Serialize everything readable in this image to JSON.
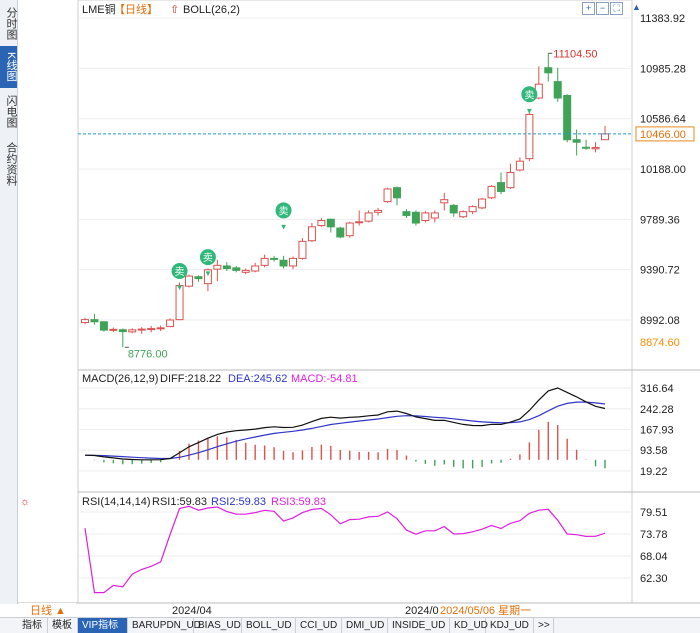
{
  "side_tabs": [
    {
      "label": "分时图",
      "active": false
    },
    {
      "label": "K线图",
      "active": true
    },
    {
      "label": "闪电图",
      "active": false
    },
    {
      "label": "合约资料",
      "active": false
    }
  ],
  "header": {
    "instrument": "LME铜",
    "period": "【日线】",
    "indicator": "BOLL(26,2)"
  },
  "top_icons": [
    "zoom-in-icon",
    "zoom-out-icon",
    "fullscreen-icon",
    "scroll-up-icon"
  ],
  "price_panel": {
    "y_ticks": [
      "11383.92",
      "10985.28",
      "10586.64",
      "10188.00",
      "9789.36",
      "9390.72",
      "8992.08"
    ],
    "ylim": [
      8700,
      11383.92
    ],
    "current_price": "10466.00",
    "low_tag": "8874.60",
    "high_annotation": "11104.50",
    "low_annotation": "8776.00",
    "sell_marker_label": "卖",
    "candles": [
      [
        8972,
        8995,
        8958,
        9010
      ],
      [
        8995,
        8978,
        8955,
        9040
      ],
      [
        8978,
        8912,
        8900,
        8982
      ],
      [
        8910,
        8918,
        8896,
        8932
      ],
      [
        8915,
        8900,
        8776,
        8925
      ],
      [
        8898,
        8914,
        8888,
        8926
      ],
      [
        8912,
        8920,
        8882,
        8935
      ],
      [
        8918,
        8924,
        8895,
        8945
      ],
      [
        8922,
        8930,
        8905,
        8948
      ],
      [
        8940,
        8992,
        8935,
        9005
      ],
      [
        8995,
        9265,
        8990,
        9290
      ],
      [
        9260,
        9340,
        9250,
        9350
      ],
      [
        9335,
        9320,
        9295,
        9345
      ],
      [
        9280,
        9390,
        9220,
        9400
      ],
      [
        9395,
        9425,
        9300,
        9470
      ],
      [
        9420,
        9400,
        9380,
        9450
      ],
      [
        9405,
        9385,
        9370,
        9420
      ],
      [
        9370,
        9385,
        9355,
        9400
      ],
      [
        9380,
        9420,
        9370,
        9445
      ],
      [
        9425,
        9480,
        9410,
        9510
      ],
      [
        9480,
        9475,
        9455,
        9500
      ],
      [
        9465,
        9420,
        9400,
        9500
      ],
      [
        9420,
        9480,
        9395,
        9495
      ],
      [
        9480,
        9615,
        9470,
        9640
      ],
      [
        9620,
        9730,
        9610,
        9760
      ],
      [
        9740,
        9780,
        9730,
        9800
      ],
      [
        9790,
        9730,
        9685,
        9795
      ],
      [
        9720,
        9650,
        9640,
        9730
      ],
      [
        9660,
        9760,
        9645,
        9770
      ],
      [
        9765,
        9770,
        9740,
        9860
      ],
      [
        9775,
        9840,
        9765,
        9860
      ],
      [
        9845,
        9860,
        9820,
        9880
      ],
      [
        9930,
        10030,
        9920,
        10040
      ],
      [
        10040,
        9960,
        9900,
        10050
      ],
      [
        9850,
        9820,
        9800,
        9870
      ],
      [
        9845,
        9760,
        9740,
        9860
      ],
      [
        9780,
        9840,
        9765,
        9855
      ],
      [
        9800,
        9840,
        9765,
        9860
      ],
      [
        9920,
        9945,
        9860,
        10000
      ],
      [
        9900,
        9840,
        9810,
        9910
      ],
      [
        9810,
        9850,
        9800,
        9860
      ],
      [
        9850,
        9890,
        9830,
        9900
      ],
      [
        9880,
        9950,
        9870,
        9960
      ],
      [
        9960,
        10050,
        9950,
        10060
      ],
      [
        10080,
        10010,
        9990,
        10160
      ],
      [
        10040,
        10160,
        10030,
        10230
      ],
      [
        10180,
        10250,
        10170,
        10280
      ],
      [
        10270,
        10620,
        10250,
        10640
      ],
      [
        10750,
        10860,
        10740,
        11000
      ],
      [
        10990,
        10950,
        10880,
        11104.5
      ],
      [
        10880,
        10750,
        10720,
        10990
      ],
      [
        10770,
        10420,
        10400,
        10780
      ],
      [
        10420,
        10400,
        10295,
        10500
      ],
      [
        10360,
        10355,
        10340,
        10420
      ],
      [
        10348,
        10358,
        10320,
        10400
      ],
      [
        10420,
        10466,
        10440,
        10530
      ]
    ]
  },
  "macd_panel": {
    "title": "MACD(26,12,9)",
    "diff_label": "DIFF:218.22",
    "dea_label": "DEA:245.62",
    "macd_label": "MACD:-54.81",
    "y_ticks": [
      "316.64",
      "242.28",
      "167.93",
      "93.58",
      "19.22"
    ],
    "ylim": [
      -5,
      335
    ]
  },
  "rsi_panel": {
    "title": "RSI(14,14,14)",
    "rsi1_label": "RSI1:59.83",
    "rsi2_label": "RSI2:59.83",
    "rsi3_label": "RSI3:59.83",
    "y_ticks": [
      "79.51",
      "73.78",
      "68.04",
      "62.30"
    ],
    "ylim": [
      57.5,
      81.5
    ]
  },
  "x_axis": {
    "label_1": "2024/04",
    "label_2": "2024/0",
    "label_highlight": "2024/05/06 星期一",
    "period_button": "日线 ▲"
  },
  "bottom_tabs": [
    "指标",
    "模板",
    "VIP指标",
    "BARUPDN_UD",
    "BIAS_UD",
    "BOLL_UD",
    "CCI_UD",
    "DMI_UD",
    "INSIDE_UD",
    "KD_UD",
    "KDJ_UD",
    ">>"
  ],
  "bottom_active_tab": "VIP指标",
  "colors": {
    "up": "#d9534f",
    "down": "#3fa358",
    "diff": "#111111",
    "dea": "#2f35c8",
    "rsi": "#e020e0",
    "axis_text": "#222222",
    "grid": "#eeeeee",
    "current_line": "#1a9ad6",
    "sell_marker": "#2fb87a",
    "high_label": "#d9342b",
    "low_label": "#3fa358",
    "low_tag": "#ff8c00"
  }
}
